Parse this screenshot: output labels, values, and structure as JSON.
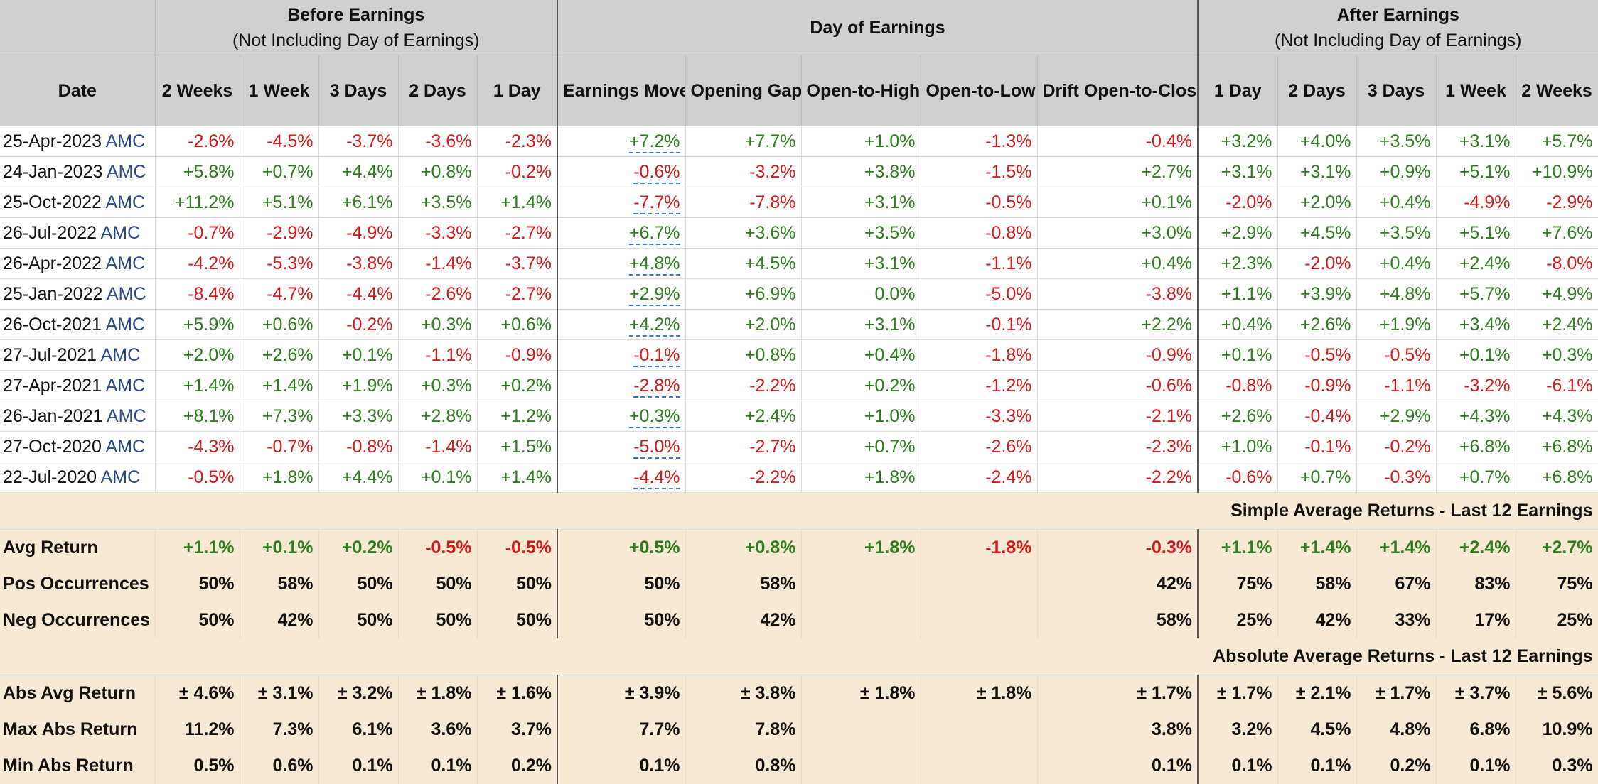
{
  "header": {
    "groups": [
      {
        "title": "Before Earnings",
        "subtitle": "(Not Including Day of Earnings)"
      },
      {
        "title": "Day of Earnings",
        "subtitle": ""
      },
      {
        "title": "After Earnings",
        "subtitle": "(Not Including Day of Earnings)"
      }
    ],
    "columns": [
      "Date",
      "2 Weeks",
      "1 Week",
      "3 Days",
      "2 Days",
      "1 Day",
      "Earnings Move",
      "Opening Gap",
      "Open-to-High",
      "Open-to-Low",
      "Drift Open-to-Close",
      "1 Day",
      "2 Days",
      "3 Days",
      "1 Week",
      "2 Weeks"
    ]
  },
  "rows": [
    {
      "date": "25-Apr-2023",
      "ticker": "AMC",
      "values": [
        "-2.6%",
        "-4.5%",
        "-3.7%",
        "-3.6%",
        "-2.3%",
        "+7.2%",
        "+7.7%",
        "+1.0%",
        "-1.3%",
        "-0.4%",
        "+3.2%",
        "+4.0%",
        "+3.5%",
        "+3.1%",
        "+5.7%"
      ]
    },
    {
      "date": "24-Jan-2023",
      "ticker": "AMC",
      "values": [
        "+5.8%",
        "+0.7%",
        "+4.4%",
        "+0.8%",
        "-0.2%",
        "-0.6%",
        "-3.2%",
        "+3.8%",
        "-1.5%",
        "+2.7%",
        "+3.1%",
        "+3.1%",
        "+0.9%",
        "+5.1%",
        "+10.9%"
      ]
    },
    {
      "date": "25-Oct-2022",
      "ticker": "AMC",
      "values": [
        "+11.2%",
        "+5.1%",
        "+6.1%",
        "+3.5%",
        "+1.4%",
        "-7.7%",
        "-7.8%",
        "+3.1%",
        "-0.5%",
        "+0.1%",
        "-2.0%",
        "+2.0%",
        "+0.4%",
        "-4.9%",
        "-2.9%"
      ]
    },
    {
      "date": "26-Jul-2022",
      "ticker": "AMC",
      "values": [
        "-0.7%",
        "-2.9%",
        "-4.9%",
        "-3.3%",
        "-2.7%",
        "+6.7%",
        "+3.6%",
        "+3.5%",
        "-0.8%",
        "+3.0%",
        "+2.9%",
        "+4.5%",
        "+3.5%",
        "+5.1%",
        "+7.6%"
      ]
    },
    {
      "date": "26-Apr-2022",
      "ticker": "AMC",
      "values": [
        "-4.2%",
        "-5.3%",
        "-3.8%",
        "-1.4%",
        "-3.7%",
        "+4.8%",
        "+4.5%",
        "+3.1%",
        "-1.1%",
        "+0.4%",
        "+2.3%",
        "-2.0%",
        "+0.4%",
        "+2.4%",
        "-8.0%"
      ]
    },
    {
      "date": "25-Jan-2022",
      "ticker": "AMC",
      "values": [
        "-8.4%",
        "-4.7%",
        "-4.4%",
        "-2.6%",
        "-2.7%",
        "+2.9%",
        "+6.9%",
        "0.0%",
        "-5.0%",
        "-3.8%",
        "+1.1%",
        "+3.9%",
        "+4.8%",
        "+5.7%",
        "+4.9%"
      ]
    },
    {
      "date": "26-Oct-2021",
      "ticker": "AMC",
      "values": [
        "+5.9%",
        "+0.6%",
        "-0.2%",
        "+0.3%",
        "+0.6%",
        "+4.2%",
        "+2.0%",
        "+3.1%",
        "-0.1%",
        "+2.2%",
        "+0.4%",
        "+2.6%",
        "+1.9%",
        "+3.4%",
        "+2.4%"
      ]
    },
    {
      "date": "27-Jul-2021",
      "ticker": "AMC",
      "values": [
        "+2.0%",
        "+2.6%",
        "+0.1%",
        "-1.1%",
        "-0.9%",
        "-0.1%",
        "+0.8%",
        "+0.4%",
        "-1.8%",
        "-0.9%",
        "+0.1%",
        "-0.5%",
        "-0.5%",
        "+0.1%",
        "+0.3%"
      ]
    },
    {
      "date": "27-Apr-2021",
      "ticker": "AMC",
      "values": [
        "+1.4%",
        "+1.4%",
        "+1.9%",
        "+0.3%",
        "+0.2%",
        "-2.8%",
        "-2.2%",
        "+0.2%",
        "-1.2%",
        "-0.6%",
        "-0.8%",
        "-0.9%",
        "-1.1%",
        "-3.2%",
        "-6.1%"
      ]
    },
    {
      "date": "26-Jan-2021",
      "ticker": "AMC",
      "values": [
        "+8.1%",
        "+7.3%",
        "+3.3%",
        "+2.8%",
        "+1.2%",
        "+0.3%",
        "+2.4%",
        "+1.0%",
        "-3.3%",
        "-2.1%",
        "+2.6%",
        "-0.4%",
        "+2.9%",
        "+4.3%",
        "+4.3%"
      ]
    },
    {
      "date": "27-Oct-2020",
      "ticker": "AMC",
      "values": [
        "-4.3%",
        "-0.7%",
        "-0.8%",
        "-1.4%",
        "+1.5%",
        "-5.0%",
        "-2.7%",
        "+0.7%",
        "-2.6%",
        "-2.3%",
        "+1.0%",
        "-0.1%",
        "-0.2%",
        "+6.8%",
        "+6.8%"
      ]
    },
    {
      "date": "22-Jul-2020",
      "ticker": "AMC",
      "values": [
        "-0.5%",
        "+1.8%",
        "+4.4%",
        "+0.1%",
        "+1.4%",
        "-4.4%",
        "-2.2%",
        "+1.8%",
        "-2.4%",
        "-2.2%",
        "-0.6%",
        "+0.7%",
        "-0.3%",
        "+0.7%",
        "+6.8%"
      ]
    }
  ],
  "simple": {
    "title": "Simple Average Returns - Last 12 Earnings",
    "rows": [
      {
        "label": "Avg Return",
        "values": [
          "+1.1%",
          "+0.1%",
          "+0.2%",
          "-0.5%",
          "-0.5%",
          "+0.5%",
          "+0.8%",
          "+1.8%",
          "-1.8%",
          "-0.3%",
          "+1.1%",
          "+1.4%",
          "+1.4%",
          "+2.4%",
          "+2.7%"
        ]
      },
      {
        "label": "Pos Occurrences",
        "values": [
          "50%",
          "58%",
          "50%",
          "50%",
          "50%",
          "50%",
          "58%",
          "",
          "",
          "42%",
          "75%",
          "58%",
          "67%",
          "83%",
          "75%"
        ]
      },
      {
        "label": "Neg Occurrences",
        "values": [
          "50%",
          "42%",
          "50%",
          "50%",
          "50%",
          "50%",
          "42%",
          "",
          "",
          "58%",
          "25%",
          "42%",
          "33%",
          "17%",
          "25%"
        ]
      }
    ]
  },
  "absolute": {
    "title": "Absolute Average Returns - Last 12 Earnings",
    "rows": [
      {
        "label": "Abs Avg Return",
        "values": [
          "± 4.6%",
          "± 3.1%",
          "± 3.2%",
          "± 1.8%",
          "± 1.6%",
          "± 3.9%",
          "± 3.8%",
          "± 1.8%",
          "± 1.8%",
          "± 1.7%",
          "± 1.7%",
          "± 2.1%",
          "± 1.7%",
          "± 3.7%",
          "± 5.6%"
        ]
      },
      {
        "label": "Max Abs Return",
        "values": [
          "11.2%",
          "7.3%",
          "6.1%",
          "3.6%",
          "3.7%",
          "7.7%",
          "7.8%",
          "",
          "",
          "3.8%",
          "3.2%",
          "4.5%",
          "4.8%",
          "6.8%",
          "10.9%"
        ]
      },
      {
        "label": "Min Abs Return",
        "values": [
          "0.5%",
          "0.6%",
          "0.1%",
          "0.1%",
          "0.2%",
          "0.1%",
          "0.8%",
          "",
          "",
          "0.1%",
          "0.1%",
          "0.1%",
          "0.2%",
          "0.1%",
          "0.3%"
        ]
      }
    ]
  },
  "colors": {
    "positive": "#2e7d1e",
    "negative": "#d21a1a",
    "section_bg": "#c7e3f1",
    "stats_bg": "#f7e9d4",
    "header_bg": "#d0d0d0",
    "ticker": "#2a4a8a"
  }
}
